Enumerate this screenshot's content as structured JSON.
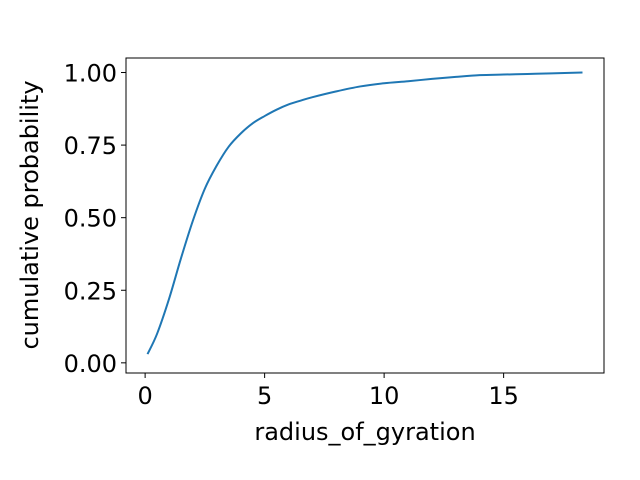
{
  "chart_data": {
    "type": "line",
    "title": "",
    "xlabel": "radius_of_gyration",
    "ylabel": "cumulative probability",
    "xlim": [
      -0.8,
      19.2
    ],
    "ylim": [
      -0.035,
      1.05
    ],
    "xticks": [
      0,
      5,
      10,
      15
    ],
    "xtick_labels": [
      "0",
      "5",
      "10",
      "15"
    ],
    "yticks": [
      0.0,
      0.25,
      0.5,
      0.75,
      1.0
    ],
    "ytick_labels": [
      "0.00",
      "0.25",
      "0.50",
      "0.75",
      "1.00"
    ],
    "grid": false,
    "colors": {
      "line": "#1f77b4"
    },
    "series": [
      {
        "x": [
          0.1,
          0.5,
          1.0,
          1.5,
          2.0,
          2.5,
          3.0,
          3.5,
          4.0,
          4.5,
          5.0,
          5.5,
          6.0,
          6.5,
          7.0,
          8.0,
          9.0,
          10.0,
          11.0,
          12.0,
          13.0,
          14.0,
          15.0,
          16.0,
          17.0,
          18.3
        ],
        "y": [
          0.03,
          0.1,
          0.22,
          0.36,
          0.49,
          0.6,
          0.68,
          0.745,
          0.79,
          0.825,
          0.85,
          0.872,
          0.89,
          0.903,
          0.915,
          0.935,
          0.952,
          0.963,
          0.97,
          0.978,
          0.985,
          0.991,
          0.993,
          0.995,
          0.997,
          1.0
        ]
      }
    ]
  }
}
